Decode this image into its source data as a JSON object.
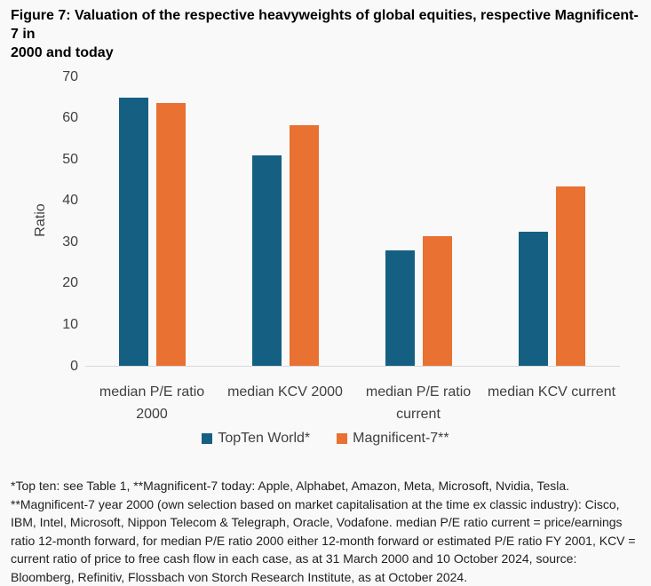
{
  "title": {
    "line1": "Figure 7: Valuation of the respective heavyweights of global equities, respective Magnificent-7 in",
    "line2": "2000 and today"
  },
  "colors": {
    "series1": "#156082",
    "series2": "#E97132",
    "axis_line": "#D9D9D9",
    "background": "#F9F9F9",
    "text": "#404040"
  },
  "chart_data": {
    "type": "bar",
    "title": "Figure 7: Valuation of the respective heavyweights of global equities, respective Magnificent-7 in 2000 and today",
    "categories": [
      "median P/E ratio 2000",
      "median KCV 2000",
      "median P/E ratio current",
      "median KCV current"
    ],
    "series": [
      {
        "name": "TopTen World*",
        "color": "#156082",
        "values": [
          64.9,
          50.9,
          27.9,
          32.4
        ]
      },
      {
        "name": "Magnificent-7**",
        "color": "#E97132",
        "values": [
          63.6,
          58.1,
          31.4,
          43.4
        ]
      }
    ],
    "xlabel": "",
    "ylabel": "Ratio",
    "ylim": [
      0,
      70
    ],
    "yticks": [
      0,
      10,
      20,
      30,
      40,
      50,
      60,
      70
    ],
    "grid": false,
    "legend_position": "bottom"
  },
  "footnote": {
    "line1": "*Top ten: see Table 1, **Magnificent-7 today: Apple, Alphabet, Amazon, Meta, Microsoft, Nvidia, Tesla.",
    "line2": "**Magnificent-7 year 2000 (own selection based on market capitalisation at the time ex classic industry): Cisco, IBM, Intel, Microsoft, Nippon Telecom & Telegraph, Oracle, Vodafone. median P/E ratio current = price/earnings ratio 12-month forward, for median P/E ratio 2000 either 12-month forward or estimated P/E ratio FY 2001, KCV = current ratio of price to free cash flow in each case, as at 31 March 2000 and 10 October 2024, source: Bloomberg, Refinitiv, Flossbach von Storch Research Institute, as at October 2024."
  }
}
